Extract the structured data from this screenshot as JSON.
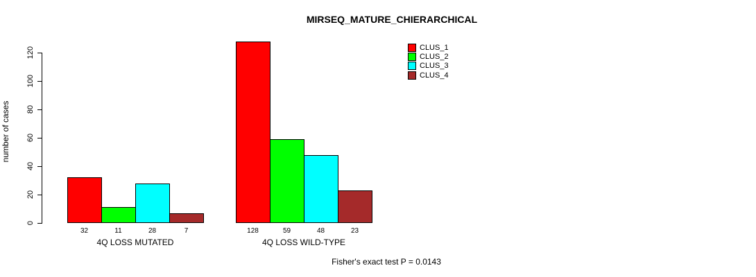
{
  "title": "MIRSEQ_MATURE_CHIERARCHICAL",
  "footnote": "Fisher's exact test P = 0.0143",
  "legend": {
    "position": "top-right",
    "items": [
      {
        "label": "CLUS_1",
        "color": "#FF0000"
      },
      {
        "label": "CLUS_2",
        "color": "#00FF00"
      },
      {
        "label": "CLUS_3",
        "color": "#00FFFF"
      },
      {
        "label": "CLUS_4",
        "color": "#A52A2A"
      }
    ]
  },
  "chart_data": {
    "type": "bar",
    "title": "MIRSEQ_MATURE_CHIERARCHICAL",
    "categories": [
      "4Q LOSS MUTATED",
      "4Q LOSS WILD-TYPE"
    ],
    "series": [
      {
        "name": "CLUS_1",
        "color": "#FF0000",
        "values": [
          32,
          128
        ]
      },
      {
        "name": "CLUS_2",
        "color": "#00FF00",
        "values": [
          11,
          59
        ]
      },
      {
        "name": "CLUS_3",
        "color": "#00FFFF",
        "values": [
          28,
          48
        ]
      },
      {
        "name": "CLUS_4",
        "color": "#A52A2A",
        "values": [
          7,
          23
        ]
      }
    ],
    "xlabel": "",
    "ylabel": "number of cases",
    "yticks": [
      0,
      20,
      40,
      60,
      80,
      100,
      120
    ],
    "ylim": [
      0,
      130
    ],
    "grid": false,
    "bar_value_labels": true,
    "legend_position": "top-right",
    "annotation": "Fisher's exact test P = 0.0143"
  }
}
